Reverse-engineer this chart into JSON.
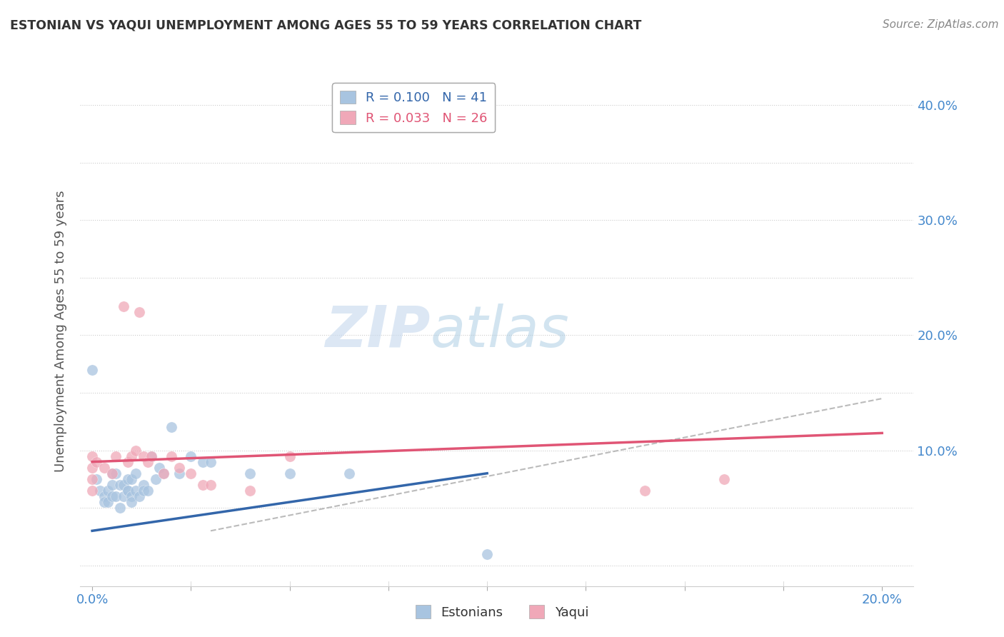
{
  "title": "ESTONIAN VS YAQUI UNEMPLOYMENT AMONG AGES 55 TO 59 YEARS CORRELATION CHART",
  "source": "Source: ZipAtlas.com",
  "xlabel_ticks": [
    0.0,
    0.025,
    0.05,
    0.075,
    0.1,
    0.125,
    0.15,
    0.175,
    0.2
  ],
  "ylabel_ticks": [
    0.0,
    0.05,
    0.1,
    0.15,
    0.2,
    0.25,
    0.3,
    0.35,
    0.4
  ],
  "xlim": [
    -0.003,
    0.208
  ],
  "ylim": [
    -0.018,
    0.425
  ],
  "ylabel": "Unemployment Among Ages 55 to 59 years",
  "legend_estonian": "R = 0.100   N = 41",
  "legend_yaqui": "R = 0.033   N = 26",
  "estonian_color": "#a8c4e0",
  "yaqui_color": "#f0a8b8",
  "estonian_line_color": "#3366aa",
  "yaqui_line_color": "#e05575",
  "estonian_x": [
    0.0,
    0.001,
    0.002,
    0.003,
    0.003,
    0.004,
    0.004,
    0.005,
    0.005,
    0.005,
    0.006,
    0.006,
    0.007,
    0.007,
    0.008,
    0.008,
    0.009,
    0.009,
    0.009,
    0.01,
    0.01,
    0.01,
    0.011,
    0.011,
    0.012,
    0.013,
    0.013,
    0.014,
    0.015,
    0.016,
    0.017,
    0.018,
    0.02,
    0.022,
    0.025,
    0.028,
    0.03,
    0.04,
    0.05,
    0.065,
    0.1
  ],
  "estonian_y": [
    0.17,
    0.075,
    0.065,
    0.06,
    0.055,
    0.065,
    0.055,
    0.08,
    0.07,
    0.06,
    0.06,
    0.08,
    0.07,
    0.05,
    0.07,
    0.06,
    0.065,
    0.075,
    0.065,
    0.06,
    0.055,
    0.075,
    0.065,
    0.08,
    0.06,
    0.07,
    0.065,
    0.065,
    0.095,
    0.075,
    0.085,
    0.08,
    0.12,
    0.08,
    0.095,
    0.09,
    0.09,
    0.08,
    0.08,
    0.08,
    0.01
  ],
  "yaqui_x": [
    0.0,
    0.0,
    0.0,
    0.0,
    0.001,
    0.003,
    0.005,
    0.006,
    0.008,
    0.009,
    0.01,
    0.011,
    0.012,
    0.013,
    0.014,
    0.015,
    0.018,
    0.02,
    0.022,
    0.025,
    0.028,
    0.03,
    0.04,
    0.05,
    0.14,
    0.16
  ],
  "yaqui_y": [
    0.095,
    0.085,
    0.075,
    0.065,
    0.09,
    0.085,
    0.08,
    0.095,
    0.225,
    0.09,
    0.095,
    0.1,
    0.22,
    0.095,
    0.09,
    0.095,
    0.08,
    0.095,
    0.085,
    0.08,
    0.07,
    0.07,
    0.065,
    0.095,
    0.065,
    0.075
  ],
  "estonian_trend_x": [
    0.0,
    0.1
  ],
  "estonian_trend_y": [
    0.03,
    0.08
  ],
  "yaqui_trend_x": [
    0.0,
    0.2
  ],
  "yaqui_trend_y": [
    0.09,
    0.115
  ],
  "ref_line_x": [
    0.03,
    0.2
  ],
  "ref_line_y": [
    0.03,
    0.145
  ],
  "grid_color": "#cccccc",
  "background_color": "#ffffff",
  "marker_size": 120
}
